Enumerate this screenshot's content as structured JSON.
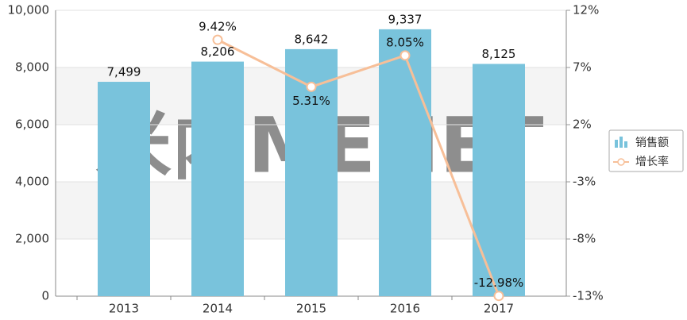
{
  "chart_data": {
    "type": "bar",
    "watermark": "米内MENET",
    "categories": [
      "2013",
      "2014",
      "2015",
      "2016",
      "2017"
    ],
    "series": [
      {
        "name": "销售额",
        "type": "bar",
        "color": "#79c3dc",
        "values": [
          7499,
          8206,
          8642,
          9337,
          8125
        ],
        "value_labels": [
          "7,499",
          "8,206",
          "8,642",
          "9,337",
          "8,125"
        ]
      },
      {
        "name": "增长率",
        "type": "line",
        "axis": "y2",
        "color": "#f7bf98",
        "values": [
          null,
          9.42,
          5.31,
          8.05,
          -12.98
        ],
        "value_labels": [
          null,
          "9.42%",
          "5.31%",
          "8.05%",
          "-12.98%"
        ]
      }
    ],
    "ylim": [
      0,
      10000
    ],
    "yticks": [
      0,
      {
        "value": 2000,
        "label": "2,000"
      },
      {
        "value": 4000,
        "label": "4,000"
      },
      {
        "value": 6000,
        "label": "6,000"
      },
      {
        "value": 8000,
        "label": "8,000"
      },
      {
        "value": 10000,
        "label": "10,000"
      }
    ],
    "y2lim": [
      -13,
      12
    ],
    "y2ticks": [
      {
        "value": -13,
        "label": "-13%"
      },
      {
        "value": -8,
        "label": "-8%"
      },
      {
        "value": -3,
        "label": "-3%"
      },
      {
        "value": 2,
        "label": "2%"
      },
      {
        "value": 7,
        "label": "7%"
      },
      {
        "value": 12,
        "label": "12%"
      }
    ],
    "grid": true
  }
}
